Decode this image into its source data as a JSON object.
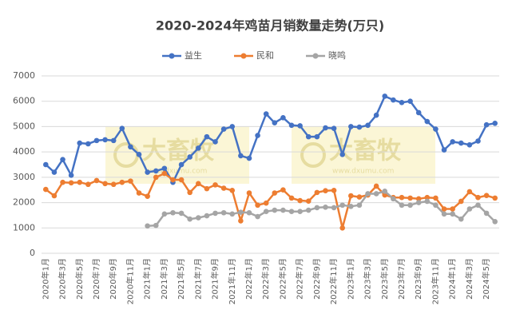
{
  "chart_data": {
    "type": "line",
    "title": "2020-2024年鸡苗月销数量走势(万只)",
    "watermark": {
      "text": "大畜牧",
      "url": "www.dxumu.com"
    },
    "categories": [
      "2020年1月",
      null,
      "2020年3月",
      null,
      "2020年5月",
      null,
      "2020年7月",
      null,
      "2020年9月",
      null,
      "2020年11月",
      null,
      "2021年1月",
      null,
      "2021年3月",
      null,
      "2021年5月",
      null,
      "2021年7月",
      null,
      "2021年9月",
      null,
      "2021年11月",
      null,
      "2022年1月",
      null,
      "2022年3月",
      null,
      "2022年5月",
      null,
      "2022年7月",
      null,
      "2022年9月",
      null,
      "2022年11月",
      null,
      "2023年1月",
      null,
      "2023年3月",
      null,
      "2023年5月",
      null,
      "2023年7月",
      null,
      "2023年9月",
      null,
      "2023年11月",
      null,
      "2024年1月",
      null,
      "2024年3月",
      null,
      "2024年5月",
      null
    ],
    "series": [
      {
        "name": "益生",
        "color": "#4472c4",
        "values": [
          3500,
          3200,
          3700,
          3080,
          4350,
          4320,
          4450,
          4480,
          4450,
          4930,
          4200,
          3900,
          3200,
          3250,
          3350,
          2800,
          3500,
          3800,
          4150,
          4600,
          4400,
          4900,
          5000,
          3850,
          3750,
          4650,
          5500,
          5150,
          5350,
          5050,
          5030,
          4600,
          4600,
          4950,
          4930,
          3900,
          5000,
          4980,
          5050,
          5450,
          6200,
          6050,
          5950,
          6000,
          5550,
          5200,
          4900,
          4080,
          4400,
          4350,
          4280,
          4430,
          5070,
          5130
        ]
      },
      {
        "name": "民和",
        "color": "#ed7d31",
        "values": [
          2520,
          2270,
          2800,
          2780,
          2800,
          2720,
          2870,
          2750,
          2720,
          2800,
          2850,
          2380,
          2250,
          3000,
          3150,
          2900,
          2900,
          2400,
          2750,
          2550,
          2700,
          2570,
          2480,
          1280,
          2380,
          1900,
          1980,
          2380,
          2500,
          2180,
          2080,
          2060,
          2400,
          2470,
          2480,
          1000,
          2270,
          2220,
          2300,
          2650,
          2300,
          2200,
          2200,
          2180,
          2150,
          2200,
          2180,
          1750,
          1750,
          2050,
          2430,
          2200,
          2280,
          2180
        ]
      },
      {
        "name": "晓鸣",
        "color": "#a5a5a5",
        "values": [
          null,
          null,
          null,
          null,
          null,
          null,
          null,
          null,
          null,
          null,
          null,
          null,
          1080,
          1100,
          1550,
          1600,
          1580,
          1350,
          1400,
          1480,
          1580,
          1600,
          1550,
          1620,
          1600,
          1450,
          1650,
          1700,
          1700,
          1650,
          1650,
          1700,
          1800,
          1820,
          1800,
          1900,
          1850,
          1900,
          2350,
          2350,
          2450,
          2150,
          1900,
          1900,
          2000,
          2050,
          1900,
          1550,
          1550,
          1350,
          1750,
          1900,
          1580,
          1250
        ]
      }
    ],
    "ylim": [
      0,
      7000
    ],
    "yticks": [
      0,
      1000,
      2000,
      3000,
      4000,
      5000,
      6000,
      7000
    ],
    "grid": true,
    "legend": "top"
  }
}
